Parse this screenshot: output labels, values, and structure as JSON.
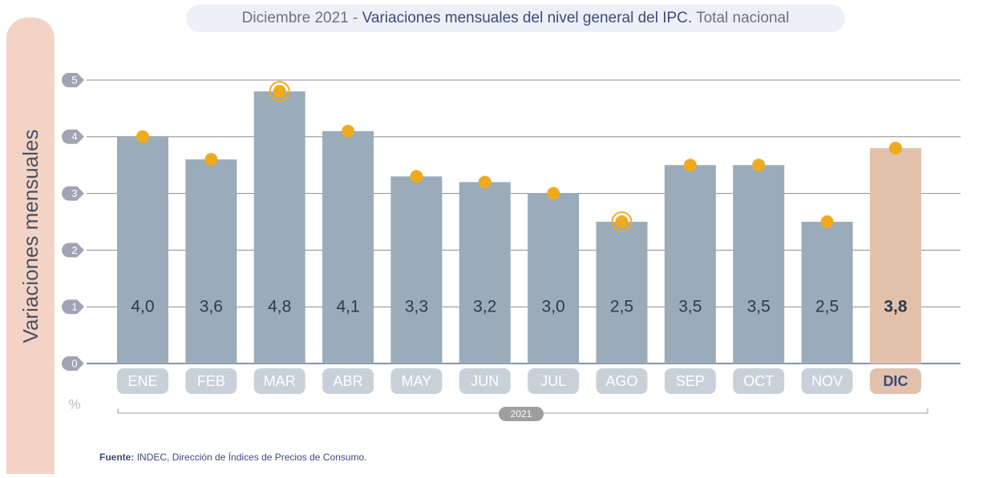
{
  "chart_data": {
    "type": "bar",
    "title_prefix": "Diciembre 2021 -",
    "title": "Variaciones mensuales del nivel general del IPC.",
    "title_suffix": "Total nacional",
    "y_label": "Variaciones mensuales",
    "unit": "%",
    "categories": [
      "ENE",
      "FEB",
      "MAR",
      "ABR",
      "MAY",
      "JUN",
      "JUL",
      "AGO",
      "SEP",
      "OCT",
      "NOV",
      "DIC"
    ],
    "values": [
      4.0,
      3.6,
      4.8,
      4.1,
      3.3,
      3.2,
      3.0,
      2.5,
      3.5,
      3.5,
      2.5,
      3.8
    ],
    "value_labels": [
      "4,0",
      "3,6",
      "4,8",
      "4,1",
      "3,3",
      "3,2",
      "3,0",
      "2,5",
      "3,5",
      "3,5",
      "2,5",
      "3,8"
    ],
    "colors": [
      "#9aabba",
      "#9aabba",
      "#9aabba",
      "#9aabba",
      "#9aabba",
      "#9aabba",
      "#9aabba",
      "#9aabba",
      "#9aabba",
      "#9aabba",
      "#9aabba",
      "#e2c1ad"
    ],
    "dot_color": "#f0aa1e",
    "ring_indices": [
      2,
      7
    ],
    "ylim": [
      0,
      5
    ],
    "yticks": [
      0,
      1,
      2,
      3,
      4,
      5
    ],
    "grid": true,
    "year": "2021",
    "source_label": "Fuente:",
    "source": "INDEC, Dirección de Índices de Precios de Consumo."
  }
}
